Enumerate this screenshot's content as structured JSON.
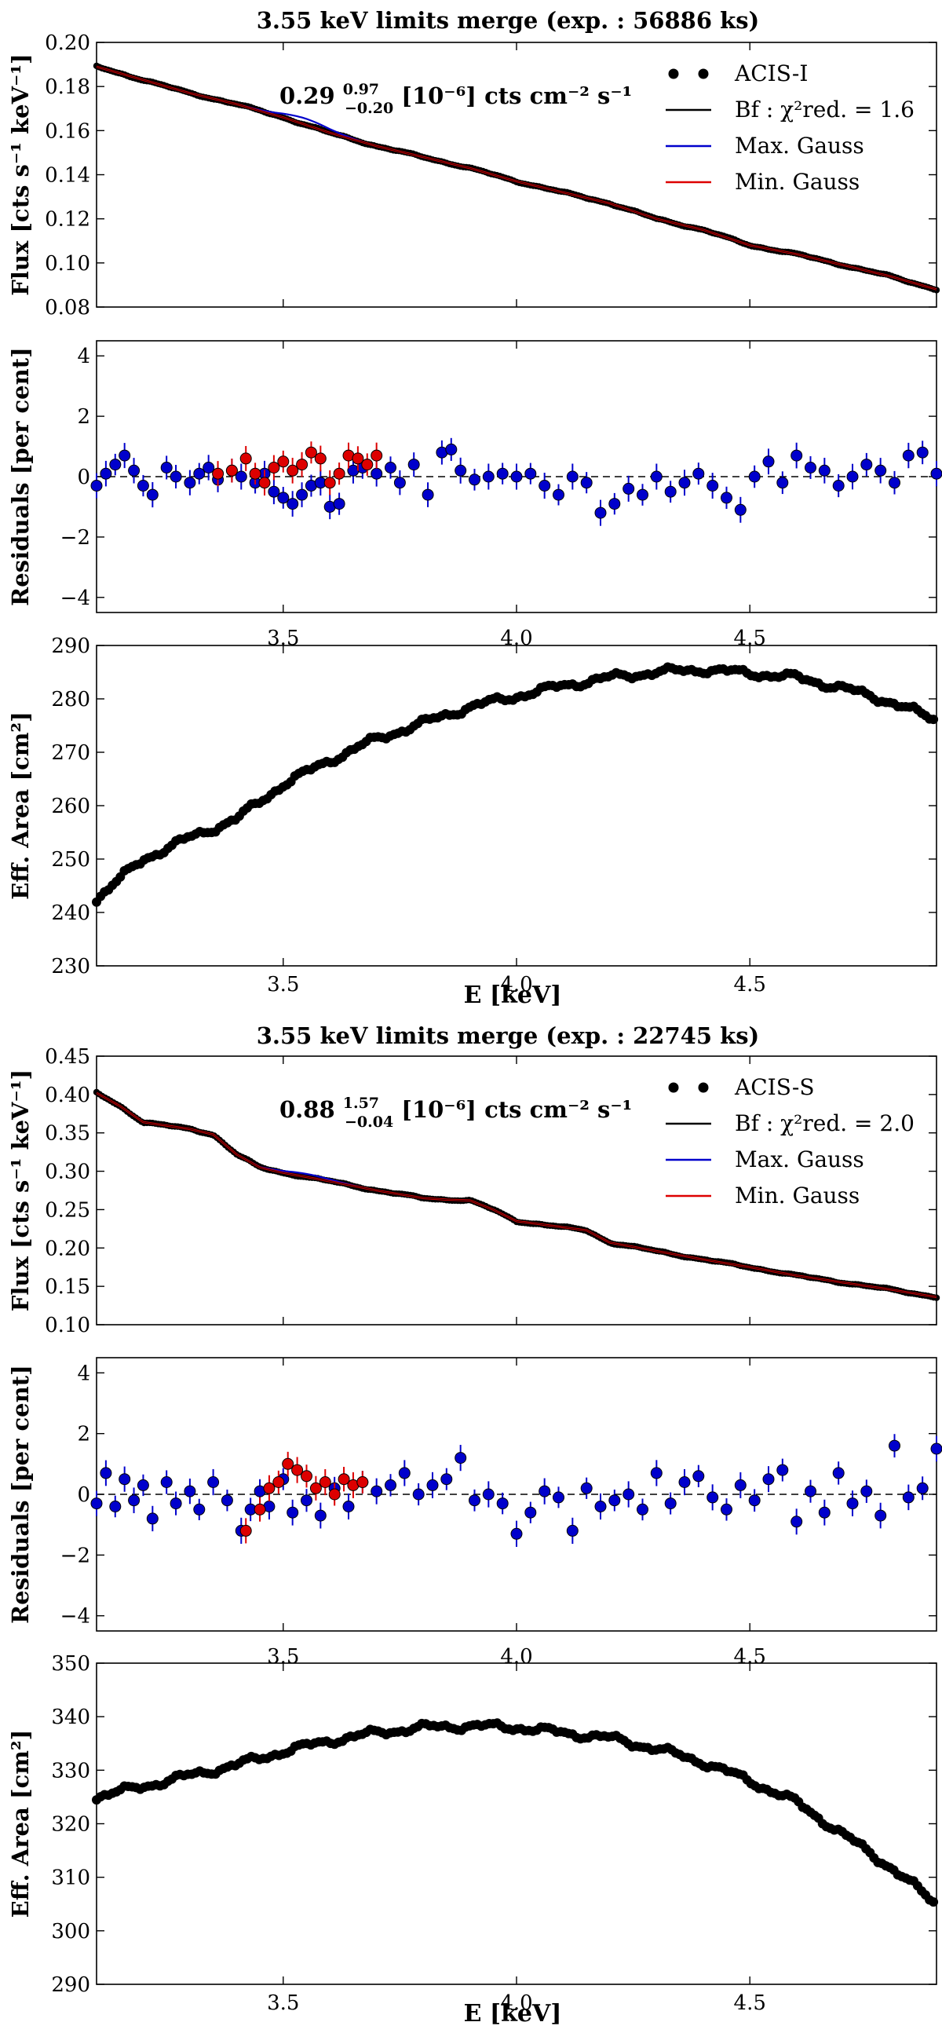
{
  "chart_data": [
    {
      "panel": "acis-i",
      "type": "scatter",
      "title": "3.55 keV limits merge (exp. : 56886 ks)",
      "annotation": "0.29 +0.97 −0.20 [10⁻⁶] cts cm⁻² s⁻¹",
      "xlabel": "E [keV]",
      "xlim": [
        3.1,
        4.9
      ],
      "xticks": [
        "3.5",
        "4.0",
        "4.5"
      ],
      "colors": {
        "data": "#000000",
        "bf": "#000000",
        "max_gauss": "#0000cc",
        "min_gauss": "#dd0000"
      },
      "legend": {
        "placement": "top-right",
        "entries": [
          {
            "label": "ACIS-I",
            "marker": "dots"
          },
          {
            "label": "Bf : χ²red. = 1.6",
            "marker": "black-line"
          },
          {
            "label": "Max. Gauss",
            "marker": "blue-line"
          },
          {
            "label": "Min. Gauss",
            "marker": "red-line"
          }
        ]
      },
      "flux": {
        "ylabel": "Flux [cts s⁻¹ keV⁻¹]",
        "ylim": [
          0.08,
          0.2
        ],
        "yticks": [
          "0.08",
          "0.10",
          "0.12",
          "0.14",
          "0.16",
          "0.18",
          "0.20"
        ],
        "x": [
          3.1,
          3.2,
          3.3,
          3.4,
          3.5,
          3.6,
          3.7,
          3.8,
          3.9,
          4.0,
          4.1,
          4.2,
          4.3,
          4.4,
          4.5,
          4.6,
          4.7,
          4.8,
          4.9
        ],
        "y": [
          0.189,
          0.183,
          0.177,
          0.172,
          0.166,
          0.159,
          0.153,
          0.148,
          0.143,
          0.137,
          0.132,
          0.127,
          0.12,
          0.115,
          0.108,
          0.104,
          0.099,
          0.094,
          0.088
        ],
        "max_gauss_peak": {
          "center": 3.55,
          "amplitude": 0.0028
        }
      },
      "residuals": {
        "ylabel": "Residuals [per cent]",
        "ylim": [
          -4.5,
          4.5
        ],
        "yticks": [
          "−4",
          "−2",
          "0",
          "2",
          "4"
        ],
        "max_gauss_points": {
          "x": [
            3.1,
            3.12,
            3.14,
            3.16,
            3.18,
            3.2,
            3.22,
            3.25,
            3.27,
            3.3,
            3.32,
            3.34,
            3.36,
            3.39,
            3.41,
            3.44,
            3.46,
            3.48,
            3.5,
            3.52,
            3.54,
            3.56,
            3.58,
            3.6,
            3.62,
            3.65,
            3.67,
            3.7,
            3.73,
            3.75,
            3.78,
            3.81,
            3.84,
            3.86,
            3.88,
            3.91,
            3.94,
            3.97,
            4.0,
            4.03,
            4.06,
            4.09,
            4.12,
            4.15,
            4.18,
            4.21,
            4.24,
            4.27,
            4.3,
            4.33,
            4.36,
            4.39,
            4.42,
            4.45,
            4.48,
            4.51,
            4.54,
            4.57,
            4.6,
            4.63,
            4.66,
            4.69,
            4.72,
            4.75,
            4.78,
            4.81,
            4.84,
            4.87,
            4.9
          ],
          "y": [
            -0.3,
            0.1,
            0.4,
            0.7,
            0.2,
            -0.3,
            -0.6,
            0.3,
            0.0,
            -0.2,
            0.1,
            0.3,
            -0.1,
            0.2,
            0.0,
            -0.2,
            0.1,
            -0.5,
            -0.7,
            -0.9,
            -0.6,
            -0.3,
            -0.2,
            -1.0,
            -0.9,
            0.2,
            0.3,
            0.1,
            0.3,
            -0.2,
            0.4,
            -0.6,
            0.8,
            0.9,
            0.2,
            -0.1,
            0.0,
            0.1,
            0.0,
            0.1,
            -0.3,
            -0.6,
            0.0,
            -0.2,
            -1.2,
            -0.9,
            -0.4,
            -0.6,
            0.0,
            -0.5,
            -0.2,
            0.1,
            -0.3,
            -0.7,
            -1.1,
            0.0,
            0.5,
            -0.2,
            0.7,
            0.3,
            0.2,
            -0.3,
            0.0,
            0.4,
            0.2,
            -0.2,
            0.7,
            0.8,
            0.1
          ]
        },
        "min_gauss_points": {
          "x": [
            3.36,
            3.39,
            3.42,
            3.44,
            3.46,
            3.48,
            3.5,
            3.52,
            3.54,
            3.56,
            3.58,
            3.6,
            3.62,
            3.64,
            3.66,
            3.68,
            3.7
          ],
          "y": [
            0.1,
            0.2,
            0.6,
            0.1,
            -0.2,
            0.3,
            0.5,
            0.2,
            0.4,
            0.8,
            0.6,
            -0.2,
            0.1,
            0.7,
            0.6,
            0.4,
            0.7
          ]
        }
      },
      "eff_area": {
        "ylabel": "Eff. Area [cm²]",
        "ylim": [
          230,
          290
        ],
        "yticks": [
          "230",
          "240",
          "250",
          "260",
          "270",
          "280",
          "290"
        ],
        "x": [
          3.1,
          3.2,
          3.3,
          3.4,
          3.5,
          3.6,
          3.7,
          3.8,
          3.9,
          4.0,
          4.1,
          4.2,
          4.3,
          4.4,
          4.5,
          4.6,
          4.7,
          4.8,
          4.9
        ],
        "y": [
          242.5,
          250.0,
          254.0,
          257.5,
          264.0,
          268.5,
          272.5,
          275.5,
          278.5,
          280.5,
          282.5,
          284.0,
          285.0,
          285.5,
          284.8,
          284.0,
          282.0,
          279.5,
          276.0
        ]
      }
    },
    {
      "panel": "acis-s",
      "type": "scatter",
      "title": "3.55 keV limits merge (exp. : 22745 ks)",
      "annotation": "0.88 +1.57 −0.04 [10⁻⁶] cts cm⁻² s⁻¹",
      "xlabel": "E [keV]",
      "xlim": [
        3.1,
        4.9
      ],
      "xticks": [
        "3.5",
        "4.0",
        "4.5"
      ],
      "colors": {
        "data": "#000000",
        "bf": "#000000",
        "max_gauss": "#0000cc",
        "min_gauss": "#dd0000"
      },
      "legend": {
        "placement": "top-right",
        "entries": [
          {
            "label": "ACIS-S",
            "marker": "dots"
          },
          {
            "label": "Bf : χ²red. = 2.0",
            "marker": "black-line"
          },
          {
            "label": "Max. Gauss",
            "marker": "blue-line"
          },
          {
            "label": "Min. Gauss",
            "marker": "red-line"
          }
        ]
      },
      "flux": {
        "ylabel": "Flux [cts s⁻¹ keV⁻¹]",
        "ylim": [
          0.1,
          0.45
        ],
        "yticks": [
          "0.10",
          "0.15",
          "0.20",
          "0.25",
          "0.30",
          "0.35",
          "0.40",
          "0.45"
        ],
        "x": [
          3.1,
          3.15,
          3.2,
          3.3,
          3.35,
          3.4,
          3.45,
          3.5,
          3.6,
          3.7,
          3.8,
          3.85,
          3.9,
          3.95,
          4.0,
          4.1,
          4.15,
          4.2,
          4.3,
          4.4,
          4.5,
          4.6,
          4.7,
          4.8,
          4.9
        ],
        "y": [
          0.402,
          0.385,
          0.364,
          0.355,
          0.348,
          0.322,
          0.305,
          0.298,
          0.287,
          0.275,
          0.265,
          0.263,
          0.262,
          0.25,
          0.235,
          0.227,
          0.223,
          0.207,
          0.196,
          0.185,
          0.175,
          0.164,
          0.155,
          0.146,
          0.136
        ],
        "max_gauss_peak": {
          "center": 3.55,
          "amplitude": 0.004
        }
      },
      "residuals": {
        "ylabel": "Residuals [per cent]",
        "ylim": [
          -4.5,
          4.5
        ],
        "yticks": [
          "−4",
          "−2",
          "0",
          "2",
          "4"
        ],
        "max_gauss_points": {
          "x": [
            3.1,
            3.12,
            3.14,
            3.16,
            3.18,
            3.2,
            3.22,
            3.25,
            3.27,
            3.3,
            3.32,
            3.35,
            3.38,
            3.41,
            3.43,
            3.45,
            3.47,
            3.5,
            3.52,
            3.55,
            3.58,
            3.61,
            3.64,
            3.67,
            3.7,
            3.73,
            3.76,
            3.79,
            3.82,
            3.85,
            3.88,
            3.91,
            3.94,
            3.97,
            4.0,
            4.03,
            4.06,
            4.09,
            4.12,
            4.15,
            4.18,
            4.21,
            4.24,
            4.27,
            4.3,
            4.33,
            4.36,
            4.39,
            4.42,
            4.45,
            4.48,
            4.51,
            4.54,
            4.57,
            4.6,
            4.63,
            4.66,
            4.69,
            4.72,
            4.75,
            4.78,
            4.81,
            4.84,
            4.87,
            4.9
          ],
          "y": [
            -0.3,
            0.7,
            -0.4,
            0.5,
            -0.2,
            0.3,
            -0.8,
            0.4,
            -0.3,
            0.1,
            -0.5,
            0.4,
            -0.2,
            -1.2,
            -0.5,
            0.1,
            -0.4,
            0.5,
            -0.6,
            -0.2,
            -0.7,
            0.2,
            -0.4,
            0.4,
            0.1,
            0.3,
            0.7,
            0.0,
            0.3,
            0.5,
            1.2,
            -0.2,
            0.0,
            -0.3,
            -1.3,
            -0.6,
            0.1,
            -0.1,
            -1.2,
            0.2,
            -0.4,
            -0.2,
            0.0,
            -0.5,
            0.7,
            -0.3,
            0.4,
            0.6,
            -0.1,
            -0.5,
            0.3,
            -0.2,
            0.5,
            0.8,
            -0.9,
            0.1,
            -0.6,
            0.7,
            -0.3,
            0.1,
            -0.7,
            1.6,
            -0.1,
            0.2,
            1.5
          ]
        },
        "min_gauss_points": {
          "x": [
            3.42,
            3.45,
            3.47,
            3.49,
            3.51,
            3.53,
            3.55,
            3.57,
            3.59,
            3.61,
            3.63,
            3.65,
            3.67
          ],
          "y": [
            -1.2,
            -0.5,
            0.2,
            0.4,
            1.0,
            0.8,
            0.6,
            0.2,
            0.4,
            0.0,
            0.5,
            0.3,
            0.4
          ]
        }
      },
      "eff_area": {
        "ylabel": "Eff. Area [cm²]",
        "ylim": [
          290,
          350
        ],
        "yticks": [
          "290",
          "300",
          "310",
          "320",
          "330",
          "340",
          "350"
        ],
        "x": [
          3.1,
          3.2,
          3.3,
          3.4,
          3.5,
          3.6,
          3.7,
          3.8,
          3.9,
          4.0,
          4.1,
          4.2,
          4.3,
          4.4,
          4.5,
          4.6,
          4.7,
          4.8,
          4.9
        ],
        "y": [
          325.0,
          327.0,
          329.0,
          331.0,
          333.5,
          335.5,
          337.0,
          338.0,
          338.3,
          338.0,
          337.0,
          336.0,
          334.0,
          331.5,
          328.0,
          324.0,
          318.0,
          312.0,
          305.0
        ]
      }
    }
  ]
}
